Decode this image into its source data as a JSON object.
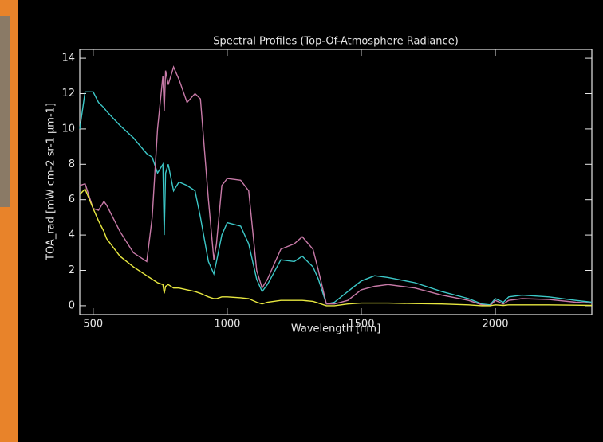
{
  "chart_data": {
    "type": "line",
    "title": "Spectral Profiles (Top-Of-Atmosphere Radiance)",
    "x_label": "Wavelength [nm]",
    "y_label": "TOA_rad [mW cm-2 sr-1 μm-1]",
    "x": [
      450,
      470,
      500,
      520,
      540,
      550,
      600,
      650,
      700,
      720,
      740,
      760,
      765,
      770,
      780,
      800,
      820,
      850,
      880,
      900,
      930,
      950,
      960,
      980,
      1000,
      1050,
      1080,
      1110,
      1130,
      1150,
      1200,
      1250,
      1280,
      1320,
      1340,
      1370,
      1400,
      1450,
      1500,
      1550,
      1600,
      1700,
      1800,
      1900,
      1950,
      1980,
      2000,
      2030,
      2050,
      2100,
      2200,
      2300,
      2360
    ],
    "series": [
      {
        "color": "#3cc8c8",
        "values": [
          10,
          12.1,
          12.1,
          11.5,
          11.2,
          11,
          10.2,
          9.5,
          8.6,
          8.4,
          7.5,
          8,
          4,
          7.5,
          8,
          6.5,
          7,
          6.8,
          6.5,
          5,
          2.5,
          1.8,
          2.5,
          4,
          4.7,
          4.5,
          3.5,
          1.5,
          0.8,
          1.2,
          2.6,
          2.5,
          2.8,
          2.2,
          1.5,
          0.1,
          0.2,
          0.8,
          1.4,
          1.7,
          1.6,
          1.3,
          0.8,
          0.4,
          0.1,
          0.05,
          0.4,
          0.2,
          0.5,
          0.6,
          0.5,
          0.3,
          0.2
        ]
      },
      {
        "color": "#c87aa8",
        "values": [
          6.8,
          6.9,
          5.5,
          5.4,
          5.9,
          5.7,
          4.2,
          3,
          2.5,
          5,
          10,
          13,
          11,
          13.3,
          12.5,
          13.5,
          12.8,
          11.5,
          12,
          11.7,
          6,
          2.6,
          3.5,
          6.8,
          7.2,
          7.1,
          6.5,
          2,
          1,
          1.5,
          3.2,
          3.5,
          3.9,
          3.2,
          2,
          0.1,
          0.1,
          0.3,
          0.9,
          1.1,
          1.2,
          1.0,
          0.6,
          0.3,
          0.05,
          0,
          0.3,
          0.1,
          0.3,
          0.4,
          0.35,
          0.2,
          0.15
        ]
      },
      {
        "color": "#e8e840",
        "values": [
          6.3,
          6.6,
          5.5,
          4.8,
          4.2,
          3.8,
          2.8,
          2.2,
          1.7,
          1.5,
          1.3,
          1.2,
          0.7,
          1.1,
          1.2,
          1.0,
          1.0,
          0.9,
          0.8,
          0.7,
          0.5,
          0.4,
          0.4,
          0.5,
          0.5,
          0.45,
          0.4,
          0.2,
          0.1,
          0.2,
          0.3,
          0.3,
          0.3,
          0.25,
          0.15,
          0,
          0,
          0.1,
          0.15,
          0.15,
          0.15,
          0.12,
          0.1,
          0.05,
          0,
          0,
          0.05,
          0.02,
          0.05,
          0.05,
          0.05,
          0.03,
          0.02
        ]
      }
    ],
    "xlim": [
      450,
      2360
    ],
    "ylim": [
      -0.5,
      14.5
    ],
    "xticks": [
      500,
      1000,
      1500,
      2000
    ],
    "yticks": [
      0,
      2,
      4,
      6,
      8,
      10,
      12,
      14
    ]
  }
}
